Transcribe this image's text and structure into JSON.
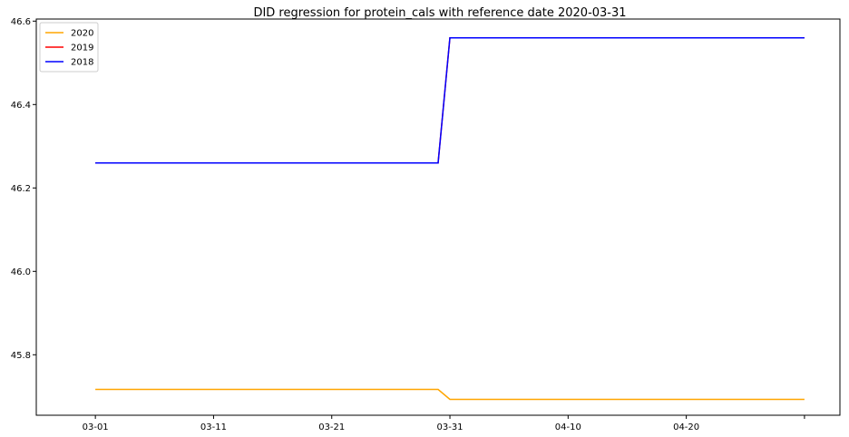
{
  "chart_data": {
    "type": "line",
    "title": "DID regression for protein_cals with reference date 2020-03-31",
    "xlabel": "",
    "ylabel": "",
    "x_tick_labels": [
      "03-01",
      "03-11",
      "03-21",
      "03-31",
      "04-10",
      "04-20",
      ""
    ],
    "y_tick_labels": [
      "45.8",
      "46.0",
      "46.2",
      "46.4",
      "46.6"
    ],
    "xlim": [
      "02-25",
      "05-03"
    ],
    "ylim": [
      45.655,
      46.605
    ],
    "grid": false,
    "legend_position": "top-left",
    "series": [
      {
        "name": "2020",
        "color": "#ffa500",
        "points": [
          [
            "03-01",
            45.717
          ],
          [
            "03-30",
            45.717
          ],
          [
            "03-31",
            45.693
          ],
          [
            "04-30",
            45.693
          ]
        ]
      },
      {
        "name": "2019",
        "color": "#ff0000",
        "points": [
          [
            "03-01",
            46.26
          ],
          [
            "03-30",
            46.26
          ],
          [
            "03-31",
            46.56
          ],
          [
            "04-30",
            46.56
          ]
        ]
      },
      {
        "name": "2018",
        "color": "#0000ff",
        "points": [
          [
            "03-01",
            46.26
          ],
          [
            "03-30",
            46.26
          ],
          [
            "03-31",
            46.56
          ],
          [
            "04-30",
            46.56
          ]
        ]
      }
    ]
  }
}
